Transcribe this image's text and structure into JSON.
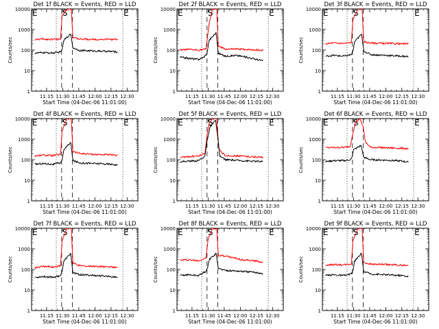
{
  "figure": {
    "panel_count": 9,
    "xlabel": "Start Time (04-Dec-06 11:01:00)",
    "ylabel": "Counts/sec",
    "series_colors": {
      "events": "#000000",
      "lld": "#ff0000"
    }
  },
  "chart_data": [
    {
      "type": "line",
      "title": "Det 1f BLACK = Events, RED = LLD",
      "xlabel": "Start Time (04-Dec-06 11:01:00)",
      "ylabel": "Counts/sec",
      "x_ticks": [
        "11:15",
        "11:30",
        "11:45",
        "12:00",
        "12:15",
        "12:30"
      ],
      "x_range_minutes": [
        0,
        99
      ],
      "y_scale": "log",
      "y_ticks": [
        "1",
        "10",
        "100",
        "1000",
        "10000"
      ],
      "ylim": [
        1,
        10000
      ],
      "markers": [
        {
          "label": "E",
          "x_minutes": 0,
          "style": "dotted"
        },
        {
          "label": "",
          "x_minutes": 23,
          "style": "dotted"
        },
        {
          "label": "S",
          "x_minutes": 28,
          "style": "dashed"
        },
        {
          "label": "",
          "x_minutes": 38,
          "style": "dashed"
        },
        {
          "label": "E",
          "x_minutes": 85,
          "style": "dotted"
        }
      ],
      "series": [
        {
          "key": "lld",
          "color": "#ff0000",
          "x": [
            3,
            10,
            20,
            27,
            28.5,
            33,
            37,
            38.5,
            45,
            60,
            75,
            80
          ],
          "y": [
            320,
            340,
            330,
            340,
            5000,
            10000,
            10000,
            400,
            340,
            330,
            330,
            320
          ]
        },
        {
          "key": "events",
          "color": "#000000",
          "x": [
            3,
            10,
            20,
            27,
            28.5,
            30,
            36.5,
            38.5,
            45,
            60,
            75,
            80
          ],
          "y": [
            70,
            75,
            72,
            80,
            110,
            300,
            600,
            130,
            95,
            90,
            85,
            80
          ]
        }
      ]
    },
    {
      "type": "line",
      "title": "Det 2f BLACK = Events, RED = LLD",
      "xlabel": "Start Time (04-Dec-06 11:01:00)",
      "ylabel": "Counts/sec",
      "x_ticks": [
        "11:15",
        "11:30",
        "11:45",
        "12:00",
        "12:15",
        "12:30"
      ],
      "x_range_minutes": [
        0,
        99
      ],
      "y_scale": "log",
      "y_ticks": [
        "1",
        "10",
        "100",
        "1000",
        "10000"
      ],
      "ylim": [
        1,
        10000
      ],
      "markers": [
        {
          "label": "E",
          "x_minutes": 0,
          "style": "dotted"
        },
        {
          "label": "",
          "x_minutes": 23,
          "style": "dotted"
        },
        {
          "label": "S",
          "x_minutes": 28,
          "style": "dashed"
        },
        {
          "label": "",
          "x_minutes": 38,
          "style": "dashed"
        },
        {
          "label": "E",
          "x_minutes": 85,
          "style": "dotted"
        }
      ],
      "series": [
        {
          "key": "lld",
          "color": "#ff0000",
          "x": [
            3,
            10,
            20,
            27,
            30,
            33,
            37,
            38.5,
            45,
            60,
            75,
            80
          ],
          "y": [
            100,
            105,
            100,
            110,
            2000,
            10000,
            10000,
            150,
            110,
            110,
            100,
            95
          ]
        },
        {
          "key": "events",
          "color": "#000000",
          "x": [
            3,
            10,
            20,
            25,
            28,
            30,
            36.5,
            38.5,
            45,
            55,
            65,
            80
          ],
          "y": [
            45,
            40,
            35,
            45,
            70,
            300,
            700,
            70,
            50,
            55,
            45,
            30
          ]
        }
      ]
    },
    {
      "type": "line",
      "title": "Det 3f BLACK = Events, RED = LLD",
      "xlabel": "Start Time (04-Dec-06 11:01:00)",
      "ylabel": "Counts/sec",
      "x_ticks": [
        "11:15",
        "11:30",
        "11:45",
        "12:00",
        "12:15",
        "12:30"
      ],
      "x_range_minutes": [
        0,
        99
      ],
      "y_scale": "log",
      "y_ticks": [
        "1",
        "10",
        "100",
        "1000",
        "10000"
      ],
      "ylim": [
        1,
        10000
      ],
      "markers": [
        {
          "label": "E",
          "x_minutes": 0,
          "style": "dotted"
        },
        {
          "label": "",
          "x_minutes": 23,
          "style": "dotted"
        },
        {
          "label": "S",
          "x_minutes": 28,
          "style": "dashed"
        },
        {
          "label": "",
          "x_minutes": 38,
          "style": "dashed"
        },
        {
          "label": "E",
          "x_minutes": 85,
          "style": "dotted"
        }
      ],
      "series": [
        {
          "key": "lld",
          "color": "#ff0000",
          "x": [
            3,
            10,
            20,
            27,
            28.5,
            33,
            37,
            38.5,
            45,
            60,
            75,
            80
          ],
          "y": [
            200,
            220,
            210,
            230,
            3000,
            10000,
            10000,
            250,
            220,
            210,
            200,
            200
          ]
        },
        {
          "key": "events",
          "color": "#000000",
          "x": [
            3,
            10,
            20,
            27,
            28.5,
            30,
            36.5,
            38.5,
            45,
            60,
            75,
            80
          ],
          "y": [
            50,
            55,
            50,
            60,
            90,
            250,
            600,
            90,
            60,
            55,
            50,
            48
          ]
        }
      ]
    },
    {
      "type": "line",
      "title": "Det 4f BLACK = Events, RED = LLD",
      "xlabel": "Start Time (04-Dec-06 11:01:00)",
      "ylabel": "Counts/sec",
      "x_ticks": [
        "11:15",
        "11:30",
        "11:45",
        "12:00",
        "12:15",
        "12:30"
      ],
      "x_range_minutes": [
        0,
        99
      ],
      "y_scale": "log",
      "y_ticks": [
        "1",
        "10",
        "100",
        "1000",
        "10000"
      ],
      "ylim": [
        1,
        10000
      ],
      "markers": [
        {
          "label": "E",
          "x_minutes": 0,
          "style": "dotted"
        },
        {
          "label": "",
          "x_minutes": 23,
          "style": "dotted"
        },
        {
          "label": "S",
          "x_minutes": 28,
          "style": "dashed"
        },
        {
          "label": "",
          "x_minutes": 38,
          "style": "dashed"
        },
        {
          "label": "E",
          "x_minutes": 85,
          "style": "dotted"
        }
      ],
      "series": [
        {
          "key": "lld",
          "color": "#ff0000",
          "x": [
            3,
            10,
            20,
            27,
            28.5,
            33,
            37,
            38.5,
            45,
            60,
            75,
            80
          ],
          "y": [
            150,
            170,
            160,
            180,
            2500,
            10000,
            10000,
            250,
            200,
            180,
            170,
            160
          ]
        },
        {
          "key": "events",
          "color": "#000000",
          "x": [
            3,
            10,
            20,
            27,
            28.5,
            30,
            36.5,
            38.5,
            45,
            60,
            75,
            80
          ],
          "y": [
            60,
            65,
            60,
            70,
            100,
            300,
            700,
            90,
            70,
            65,
            60,
            55
          ]
        }
      ]
    },
    {
      "type": "line",
      "title": "Det 5f BLACK = Events, RED = LLD",
      "xlabel": "Start Time (04-Dec-06 11:01:00)",
      "ylabel": "Counts/sec",
      "x_ticks": [
        "11:15",
        "11:30",
        "11:45",
        "12:00",
        "12:15",
        "12:30"
      ],
      "x_range_minutes": [
        0,
        99
      ],
      "y_scale": "log",
      "y_ticks": [
        "1",
        "10",
        "100",
        "1000",
        "10000"
      ],
      "ylim": [
        1,
        10000
      ],
      "markers": [
        {
          "label": "E",
          "x_minutes": 0,
          "style": "dotted"
        },
        {
          "label": "",
          "x_minutes": 23,
          "style": "dotted"
        },
        {
          "label": "S",
          "x_minutes": 28,
          "style": "dashed"
        },
        {
          "label": "",
          "x_minutes": 38,
          "style": "dashed"
        },
        {
          "label": "E",
          "x_minutes": 85,
          "style": "dotted"
        }
      ],
      "series": [
        {
          "key": "lld",
          "color": "#ff0000",
          "x": [
            3,
            10,
            20,
            26,
            28,
            30,
            33,
            37,
            39,
            45,
            60,
            80
          ],
          "y": [
            130,
            140,
            150,
            200,
            1500,
            6000,
            10000,
            10000,
            300,
            160,
            150,
            130
          ]
        },
        {
          "key": "events",
          "color": "#000000",
          "x": [
            3,
            10,
            20,
            26,
            28,
            31,
            36,
            38,
            40,
            45,
            60,
            80
          ],
          "y": [
            80,
            85,
            90,
            150,
            800,
            4000,
            8000,
            1200,
            150,
            100,
            90,
            80
          ]
        }
      ]
    },
    {
      "type": "line",
      "title": "Det 6f BLACK = Events, RED = LLD",
      "xlabel": "Start Time (04-Dec-06 11:01:00)",
      "ylabel": "Counts/sec",
      "x_ticks": [
        "11:15",
        "11:30",
        "11:45",
        "12:00",
        "12:15",
        "12:30"
      ],
      "x_range_minutes": [
        0,
        99
      ],
      "y_scale": "log",
      "y_ticks": [
        "1",
        "10",
        "100",
        "1000",
        "10000"
      ],
      "ylim": [
        1,
        10000
      ],
      "markers": [
        {
          "label": "E",
          "x_minutes": 0,
          "style": "dotted"
        },
        {
          "label": "",
          "x_minutes": 23,
          "style": "dotted"
        },
        {
          "label": "S",
          "x_minutes": 28,
          "style": "dashed"
        },
        {
          "label": "",
          "x_minutes": 38,
          "style": "dashed"
        },
        {
          "label": "E",
          "x_minutes": 85,
          "style": "dotted"
        }
      ],
      "series": [
        {
          "key": "lld",
          "color": "#ff0000",
          "x": [
            3,
            10,
            20,
            26,
            28,
            31,
            35,
            38,
            40,
            45,
            60,
            80
          ],
          "y": [
            380,
            390,
            400,
            450,
            1500,
            7000,
            10000,
            4000,
            700,
            400,
            380,
            350
          ]
        },
        {
          "key": "events",
          "color": "#000000",
          "x": [
            3,
            10,
            20,
            26,
            27.5,
            29,
            36,
            38.5,
            45,
            60,
            75,
            80
          ],
          "y": [
            80,
            90,
            90,
            100,
            130,
            300,
            500,
            130,
            100,
            95,
            85,
            75
          ]
        }
      ]
    },
    {
      "type": "line",
      "title": "Det 7f BLACK = Events, RED = LLD",
      "xlabel": "Start Time (04-Dec-06 11:01:00)",
      "ylabel": "Counts/sec",
      "x_ticks": [
        "11:15",
        "11:30",
        "11:45",
        "12:00",
        "12:15",
        "12:30"
      ],
      "x_range_minutes": [
        0,
        99
      ],
      "y_scale": "log",
      "y_ticks": [
        "1",
        "10",
        "100",
        "1000",
        "10000"
      ],
      "ylim": [
        1,
        10000
      ],
      "markers": [
        {
          "label": "E",
          "x_minutes": 0,
          "style": "dotted"
        },
        {
          "label": "",
          "x_minutes": 23,
          "style": "dotted"
        },
        {
          "label": "S",
          "x_minutes": 28,
          "style": "dashed"
        },
        {
          "label": "",
          "x_minutes": 38,
          "style": "dashed"
        },
        {
          "label": "E",
          "x_minutes": 85,
          "style": "dotted"
        }
      ],
      "series": [
        {
          "key": "lld",
          "color": "#ff0000",
          "x": [
            3,
            10,
            20,
            27,
            28.5,
            33,
            37,
            38.5,
            45,
            60,
            75,
            80
          ],
          "y": [
            120,
            140,
            130,
            150,
            2500,
            10000,
            10000,
            200,
            150,
            140,
            130,
            120
          ]
        },
        {
          "key": "events",
          "color": "#000000",
          "x": [
            3,
            10,
            20,
            27,
            28.5,
            30,
            36.5,
            38.5,
            45,
            60,
            75,
            80
          ],
          "y": [
            40,
            45,
            42,
            50,
            80,
            250,
            600,
            70,
            55,
            50,
            45,
            40
          ]
        }
      ]
    },
    {
      "type": "line",
      "title": "Det 8f BLACK = Events, RED = LLD",
      "xlabel": "Start Time (04-Dec-06 11:01:00)",
      "ylabel": "Counts/sec",
      "x_ticks": [
        "11:15",
        "11:30",
        "11:45",
        "12:00",
        "12:15",
        "12:30"
      ],
      "x_range_minutes": [
        0,
        99
      ],
      "y_scale": "log",
      "y_ticks": [
        "1",
        "10",
        "100",
        "1000",
        "10000"
      ],
      "ylim": [
        1,
        10000
      ],
      "markers": [
        {
          "label": "E",
          "x_minutes": 0,
          "style": "dotted"
        },
        {
          "label": "",
          "x_minutes": 23,
          "style": "dotted"
        },
        {
          "label": "S",
          "x_minutes": 28,
          "style": "dashed"
        },
        {
          "label": "",
          "x_minutes": 38,
          "style": "dashed"
        },
        {
          "label": "E",
          "x_minutes": 85,
          "style": "dotted"
        }
      ],
      "series": [
        {
          "key": "lld",
          "color": "#ff0000",
          "x": [
            3,
            10,
            20,
            27,
            29,
            33,
            37,
            38.5,
            45,
            60,
            75,
            80
          ],
          "y": [
            280,
            300,
            260,
            350,
            3000,
            10000,
            10000,
            500,
            450,
            300,
            250,
            220
          ]
        },
        {
          "key": "events",
          "color": "#000000",
          "x": [
            3,
            10,
            20,
            27,
            28.5,
            30,
            36.5,
            38.5,
            45,
            60,
            75,
            80
          ],
          "y": [
            50,
            55,
            50,
            80,
            120,
            300,
            600,
            110,
            90,
            80,
            70,
            60
          ]
        }
      ]
    },
    {
      "type": "line",
      "title": "Det 9f BLACK = Events, RED = LLD",
      "xlabel": "Start Time (04-Dec-06 11:01:00)",
      "ylabel": "Counts/sec",
      "x_ticks": [
        "11:15",
        "11:30",
        "11:45",
        "12:00",
        "12:15",
        "12:30"
      ],
      "x_range_minutes": [
        0,
        99
      ],
      "y_scale": "log",
      "y_ticks": [
        "1",
        "10",
        "100",
        "1000",
        "10000"
      ],
      "ylim": [
        1,
        10000
      ],
      "markers": [
        {
          "label": "E",
          "x_minutes": 0,
          "style": "dotted"
        },
        {
          "label": "",
          "x_minutes": 23,
          "style": "dotted"
        },
        {
          "label": "S",
          "x_minutes": 28,
          "style": "dashed"
        },
        {
          "label": "",
          "x_minutes": 38,
          "style": "dashed"
        },
        {
          "label": "E",
          "x_minutes": 85,
          "style": "dotted"
        }
      ],
      "series": [
        {
          "key": "lld",
          "color": "#ff0000",
          "x": [
            3,
            10,
            20,
            27,
            28.5,
            33,
            37,
            38.5,
            45,
            60,
            75,
            80
          ],
          "y": [
            160,
            170,
            165,
            180,
            2500,
            10000,
            10000,
            220,
            180,
            170,
            160,
            150
          ]
        },
        {
          "key": "events",
          "color": "#000000",
          "x": [
            3,
            10,
            20,
            27,
            28.5,
            30,
            36.5,
            38.5,
            45,
            60,
            75,
            80
          ],
          "y": [
            50,
            55,
            50,
            60,
            90,
            250,
            600,
            80,
            60,
            55,
            50,
            45
          ]
        }
      ]
    }
  ]
}
